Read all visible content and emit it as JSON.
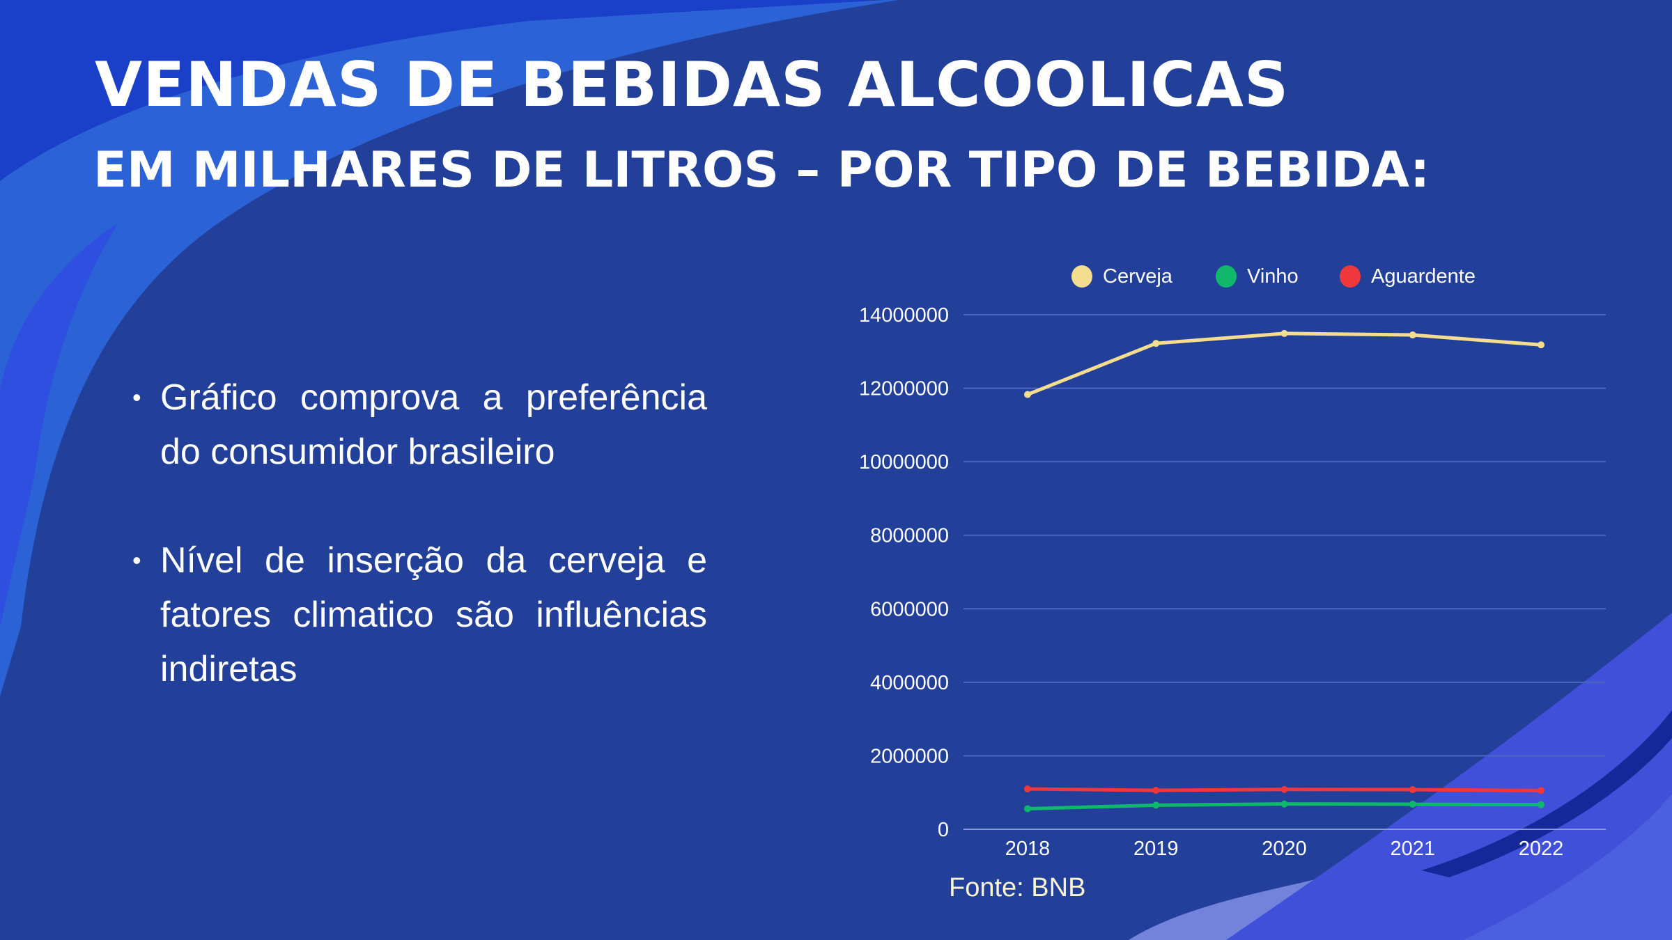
{
  "slide": {
    "title_line1": "VENDAS DE BEBIDAS ALCOOLICAS",
    "title_line2": "EM MILHARES DE LITROS – POR TIPO DE BEBIDA:",
    "bullets": [
      {
        "marker": "•",
        "text": "Gráfico comprova a preferência do consumidor brasileiro"
      },
      {
        "marker": "•",
        "text": "Nível de inserção da cerveja e fatores climatico são influências indiretas"
      }
    ],
    "source": "Fonte: BNB"
  },
  "colors": {
    "background": "#22409a",
    "cerveja": "#f4dd8e",
    "vinho": "#0fb86a",
    "aguardente": "#f0373c",
    "grid": "#4a66c0",
    "text": "#ffffff"
  },
  "chart_data": {
    "type": "line",
    "title": "Vendas de bebidas alcoolicas em milhares de litros – por tipo de bebida",
    "xlabel": "",
    "ylabel": "",
    "categories": [
      "2018",
      "2019",
      "2020",
      "2021",
      "2022"
    ],
    "series": [
      {
        "name": "Cerveja",
        "color": "#f4dd8e",
        "values": [
          11830000,
          13220000,
          13490000,
          13450000,
          13180000
        ]
      },
      {
        "name": "Vinho",
        "color": "#0fb86a",
        "values": [
          560000,
          656000,
          688000,
          681000,
          669000
        ]
      },
      {
        "name": "Aguardente",
        "color": "#f0373c",
        "values": [
          1098000,
          1060000,
          1085000,
          1079000,
          1054000
        ]
      }
    ],
    "yticks": [
      0,
      2000000,
      4000000,
      6000000,
      8000000,
      10000000,
      12000000,
      14000000
    ],
    "ytick_labels": [
      "0",
      "2000000",
      "4000000",
      "6000000",
      "8000000",
      "10000000",
      "12000000",
      "14000000"
    ],
    "ylim": [
      0,
      14000000
    ],
    "grid": true,
    "legend_position": "top"
  }
}
